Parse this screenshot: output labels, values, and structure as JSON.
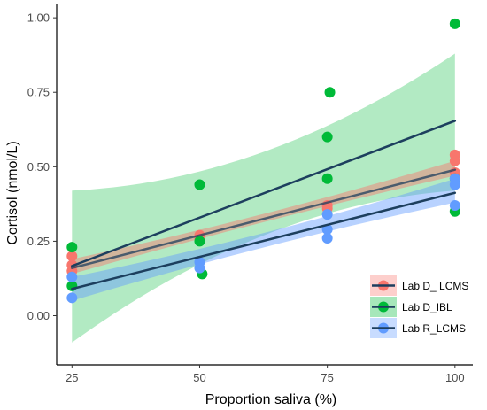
{
  "chart_data": {
    "type": "scatter",
    "xlabel": "Proportion saliva (%)",
    "ylabel": "Cortisol (nmol/L)",
    "xlim": [
      22,
      103.5
    ],
    "ylim": [
      -0.165,
      1.045
    ],
    "x_ticks": [
      25,
      50,
      75,
      100
    ],
    "x_tick_labels": [
      "25",
      "50",
      "75",
      "100"
    ],
    "y_ticks": [
      0.0,
      0.25,
      0.5,
      0.75,
      1.0
    ],
    "y_tick_labels": [
      "0.00",
      "0.25",
      "0.50",
      "0.75",
      "1.00"
    ],
    "grid": false,
    "legend_position": "bottom-right",
    "series": [
      {
        "name": "Lab D_ LCMS",
        "color": "#F8766D",
        "points": [
          [
            25,
            0.2
          ],
          [
            25,
            0.17
          ],
          [
            25,
            0.15
          ],
          [
            50,
            0.27
          ],
          [
            50,
            0.26
          ],
          [
            75,
            0.37
          ],
          [
            75,
            0.36
          ],
          [
            100,
            0.54
          ],
          [
            100,
            0.52
          ],
          [
            100,
            0.48
          ]
        ],
        "fit": {
          "slope": 0.0044,
          "intercept": 0.05,
          "band_lower": [
            0.14,
            0.47
          ],
          "band_upper": [
            0.19,
            0.52
          ]
        }
      },
      {
        "name": "Lab D_IBL",
        "color": "#00BA38",
        "points": [
          [
            25,
            0.23
          ],
          [
            25,
            0.1
          ],
          [
            50,
            0.44
          ],
          [
            50,
            0.25
          ],
          [
            50.5,
            0.14
          ],
          [
            75.5,
            0.75
          ],
          [
            75,
            0.6
          ],
          [
            75,
            0.46
          ],
          [
            100,
            0.98
          ],
          [
            100,
            0.46
          ],
          [
            100,
            0.35
          ]
        ],
        "fit": {
          "slope": 0.0065,
          "intercept": 0.0043,
          "band_lower": [
            -0.09,
            0.42
          ],
          "band_upper": [
            0.42,
            0.88
          ]
        }
      },
      {
        "name": "Lab R_LCMS",
        "color": "#619CFF",
        "points": [
          [
            25,
            0.13
          ],
          [
            25,
            0.06
          ],
          [
            50,
            0.18
          ],
          [
            50,
            0.16
          ],
          [
            75,
            0.34
          ],
          [
            75,
            0.29
          ],
          [
            75,
            0.26
          ],
          [
            100,
            0.46
          ],
          [
            100,
            0.44
          ],
          [
            100,
            0.37
          ]
        ],
        "fit": {
          "slope": 0.0043,
          "intercept": -0.0175,
          "band_lower": [
            0.05,
            0.38
          ],
          "band_upper": [
            0.13,
            0.46
          ]
        }
      }
    ],
    "fit_line_color": "#1D3F5E"
  }
}
